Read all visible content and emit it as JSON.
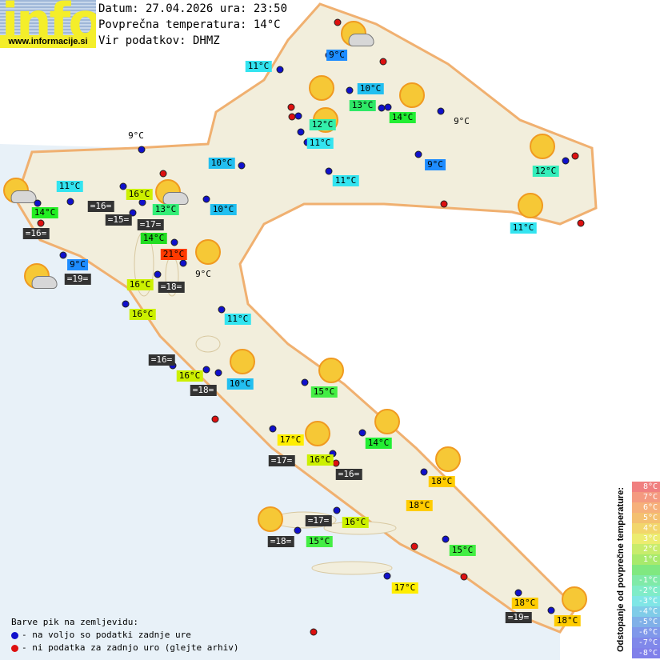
{
  "header": {
    "logo_word": "info",
    "logo_url": "www.informacije.si",
    "date_line": "Datum: 27.04.2026 ura: 23:50",
    "avg_temp_line": "Povprečna temperatura: 14°C",
    "source_line": "Vir podatkov: DHMZ"
  },
  "labels": [
    {
      "t": "9°C",
      "c": "#1e8cff"
    },
    {
      "t": "11°C",
      "c": "#33e4f0"
    },
    {
      "t": "10°C",
      "c": "#22bff0"
    },
    {
      "t": "13°C",
      "c": "#2ee866"
    },
    {
      "t": "14°C",
      "c": "#22ee33"
    },
    {
      "t": "9°C",
      "c": "plain"
    },
    {
      "t": "12°C",
      "c": "#33eeaa"
    },
    {
      "t": "11°C",
      "c": "#33e4f0"
    },
    {
      "t": "9°C",
      "c": "plain"
    },
    {
      "t": "10°C",
      "c": "#22bff0"
    },
    {
      "t": "9°C",
      "c": "#1e8cff"
    },
    {
      "t": "12°C",
      "c": "#33eebb"
    },
    {
      "t": "11°C",
      "c": "#33e4f0"
    },
    {
      "t": "11°C",
      "c": "#33e4f0"
    },
    {
      "t": "16°C",
      "c": "#ccf000"
    },
    {
      "t": "=16=",
      "c": "dark"
    },
    {
      "t": "10°C",
      "c": "#22bff0"
    },
    {
      "t": "=15=",
      "c": "dark"
    },
    {
      "t": "13°C",
      "c": "#33ee77"
    },
    {
      "t": "=17=",
      "c": "dark"
    },
    {
      "t": "14°C",
      "c": "#22dd22"
    },
    {
      "t": "14°C",
      "c": "#22ee22"
    },
    {
      "t": "=16=",
      "c": "dark"
    },
    {
      "t": "11°C",
      "c": "#33e4f0"
    },
    {
      "t": "21°C",
      "c": "#ff3a00"
    },
    {
      "t": "9°C",
      "c": "#1e8cff"
    },
    {
      "t": "=19=",
      "c": "dark"
    },
    {
      "t": "9°C",
      "c": "plain"
    },
    {
      "t": "16°C",
      "c": "#ccf000"
    },
    {
      "t": "=18=",
      "c": "dark"
    },
    {
      "t": "16°C",
      "c": "#ccf000"
    },
    {
      "t": "11°C",
      "c": "#33e4f0"
    },
    {
      "t": "=16=",
      "c": "dark"
    },
    {
      "t": "16°C",
      "c": "#ccf000"
    },
    {
      "t": "10°C",
      "c": "#22bff0"
    },
    {
      "t": "=18=",
      "c": "dark"
    },
    {
      "t": "15°C",
      "c": "#44ee44"
    },
    {
      "t": "17°C",
      "c": "#ffee00"
    },
    {
      "t": "14°C",
      "c": "#22ee33"
    },
    {
      "t": "=17=",
      "c": "dark"
    },
    {
      "t": "16°C",
      "c": "#ccf000"
    },
    {
      "t": "=16=",
      "c": "dark"
    },
    {
      "t": "18°C",
      "c": "#ffcc00"
    },
    {
      "t": "18°C",
      "c": "#ffcc00"
    },
    {
      "t": "=17=",
      "c": "dark"
    },
    {
      "t": "16°C",
      "c": "#ccf000"
    },
    {
      "t": "=18=",
      "c": "dark"
    },
    {
      "t": "15°C",
      "c": "#44ee44"
    },
    {
      "t": "15°C",
      "c": "#44ee44"
    },
    {
      "t": "17°C",
      "c": "#ffee00"
    },
    {
      "t": "18°C",
      "c": "#ffcc00"
    },
    {
      "t": "=19=",
      "c": "dark"
    },
    {
      "t": "18°C",
      "c": "#ffcc00"
    }
  ],
  "legend": {
    "title": "Barve pik na zemljevidu:",
    "blue_text": "- na voljo so podatki zadnje ure",
    "red_text": "- ni podatka za zadnjo uro (glejte arhiv)",
    "blue_color": "#1010cc",
    "red_color": "#dd1010"
  },
  "scale": {
    "title": "Odstopanje od povprečne temperature:",
    "steps": [
      {
        "t": "8°C",
        "c": "#f08080"
      },
      {
        "t": "7°C",
        "c": "#f49a80"
      },
      {
        "t": "6°C",
        "c": "#f6b07a"
      },
      {
        "t": "5°C",
        "c": "#f4c070"
      },
      {
        "t": "4°C",
        "c": "#f2d66c"
      },
      {
        "t": "3°C",
        "c": "#ecec70"
      },
      {
        "t": "2°C",
        "c": "#c8ec6c"
      },
      {
        "t": "1°C",
        "c": "#a8ea6c"
      },
      {
        "t": "",
        "c": "#80e880"
      },
      {
        "t": "-1°C",
        "c": "#80eaa8"
      },
      {
        "t": "-2°C",
        "c": "#80ecc8"
      },
      {
        "t": "-3°C",
        "c": "#80e6e6"
      },
      {
        "t": "-4°C",
        "c": "#80cce8"
      },
      {
        "t": "-5°C",
        "c": "#80b0e8"
      },
      {
        "t": "-6°C",
        "c": "#8098ea"
      },
      {
        "t": "-7°C",
        "c": "#8088ea"
      },
      {
        "t": "-8°C",
        "c": "#8080ea"
      }
    ]
  }
}
